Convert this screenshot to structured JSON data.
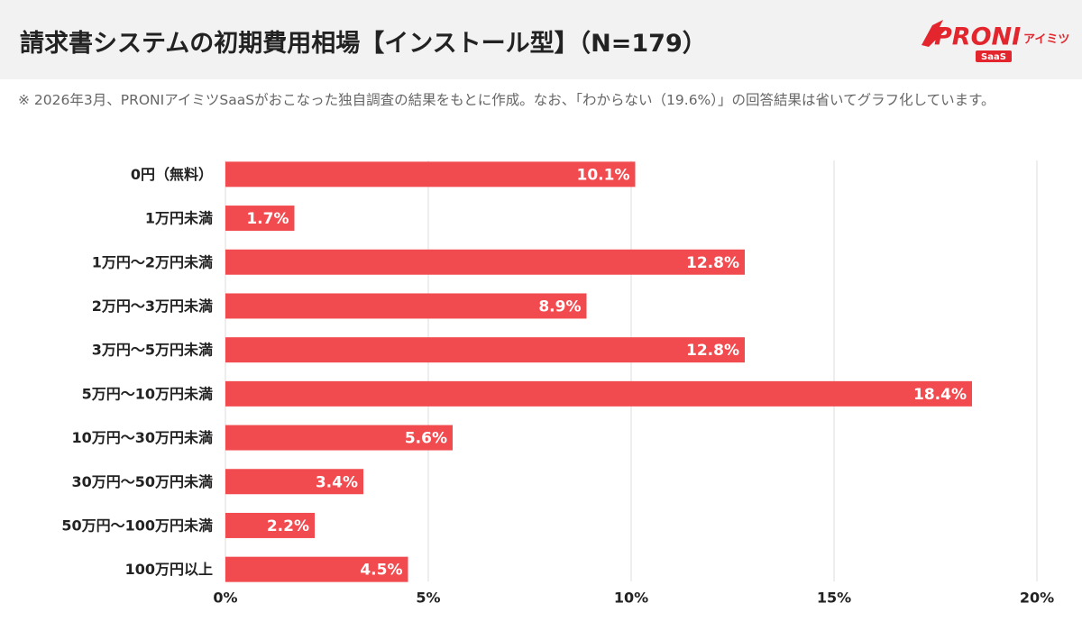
{
  "logo": {
    "brand": "PRONI",
    "sub": "アイミツ",
    "badge": "SaaS"
  },
  "chart_data": {
    "type": "bar",
    "orientation": "horizontal",
    "title": "請求書システムの初期費用相場【インストール型】（N=179）",
    "subtitle": "※ 2026年3月、PRONIアイミツSaaSがおこなった独自調査の結果をもとに作成。なお、「わからない（19.6%）」の回答結果は省いてグラフ化しています。",
    "categories": [
      "0円（無料）",
      "1万円未満",
      "1万円〜2万円未満",
      "2万円〜3万円未満",
      "3万円〜5万円未満",
      "5万円〜10万円未満",
      "10万円〜30万円未満",
      "30万円〜50万円未満",
      "50万円〜100万円未満",
      "100万円以上"
    ],
    "values": [
      10.1,
      1.7,
      12.8,
      8.9,
      12.8,
      18.4,
      5.6,
      3.4,
      2.2,
      4.5
    ],
    "value_labels": [
      "10.1%",
      "1.7%",
      "12.8%",
      "8.9%",
      "12.8%",
      "18.4%",
      "5.6%",
      "3.4%",
      "2.2%",
      "4.5%"
    ],
    "color": "#f24b4f",
    "xlim": [
      0,
      20
    ],
    "xticks": [
      {
        "value": 0,
        "label": "0%"
      },
      {
        "value": 5,
        "label": "5%"
      },
      {
        "value": 10,
        "label": "10%"
      },
      {
        "value": 15,
        "label": "15%"
      },
      {
        "value": 20,
        "label": "20%"
      }
    ],
    "grid": true
  }
}
